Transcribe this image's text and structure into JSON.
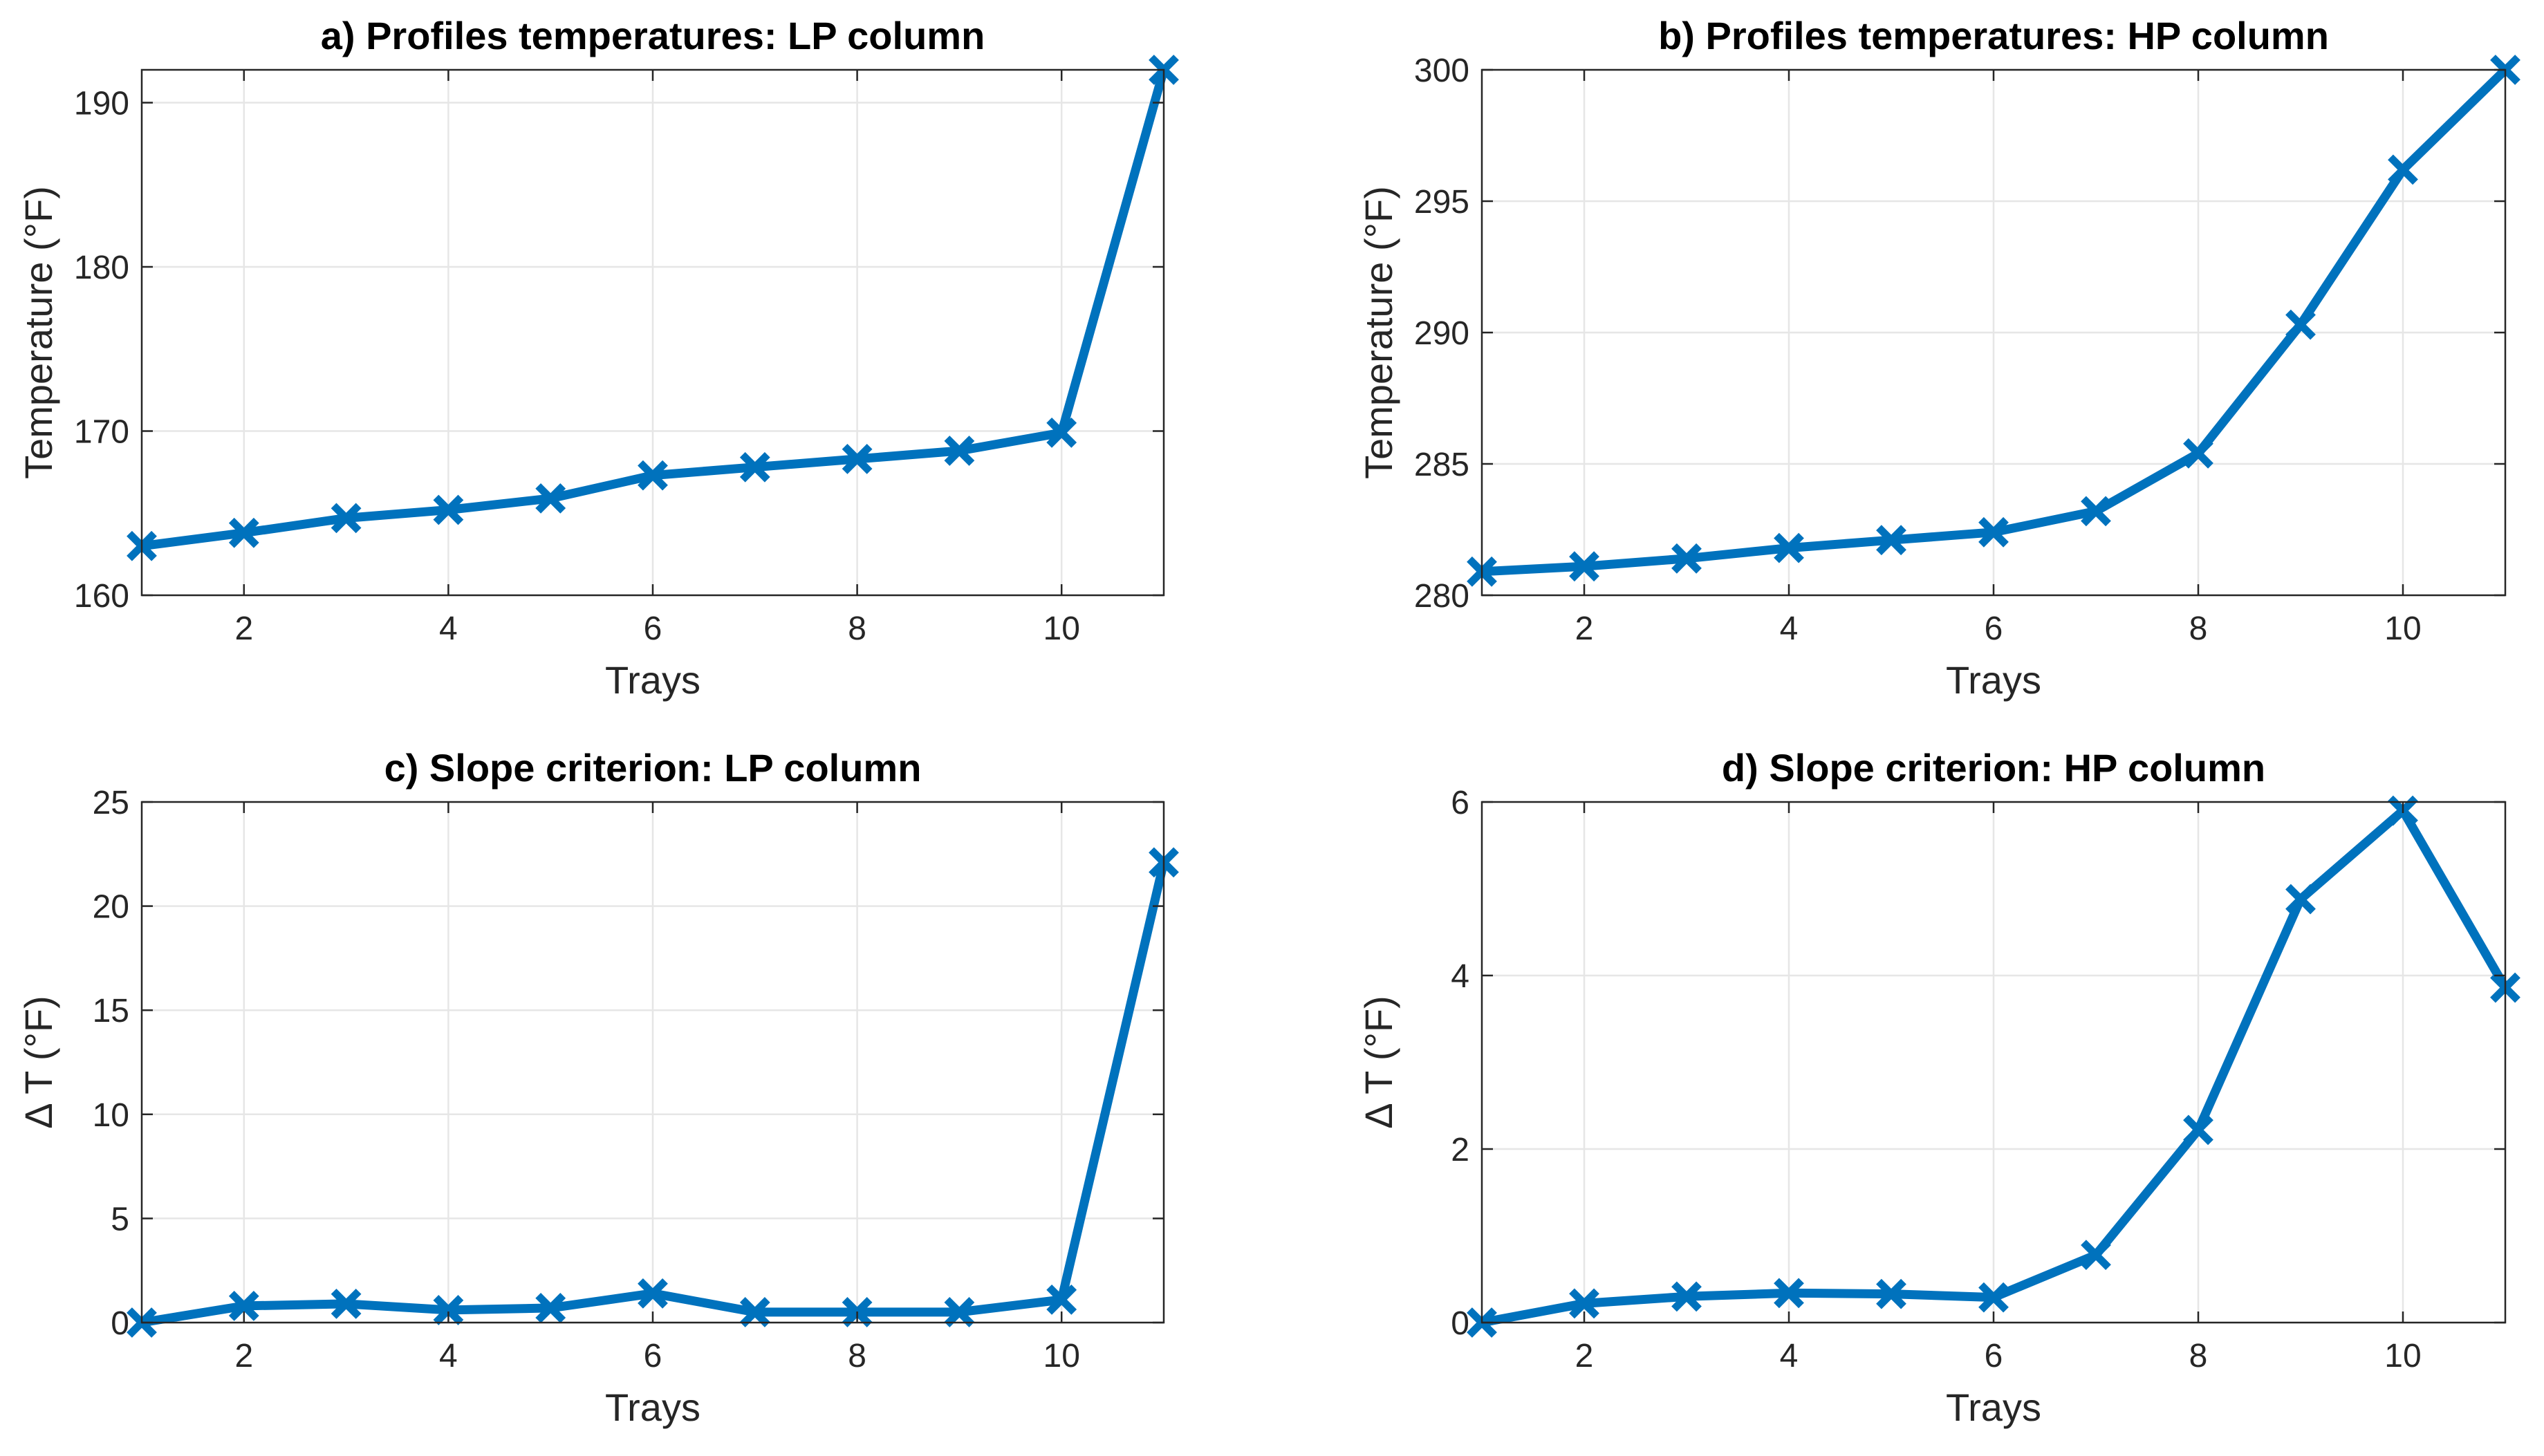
{
  "colors": {
    "series": "#0072BD",
    "grid": "#e6e6e6",
    "axis": "#262626",
    "background": "#ffffff"
  },
  "chart_data": [
    {
      "type": "line",
      "title": "a) Profiles temperatures: LP column",
      "xlabel": "Trays",
      "ylabel": "Temperature (°F)",
      "xlim": [
        1,
        11
      ],
      "ylim": [
        160,
        192
      ],
      "xticks": [
        2,
        4,
        6,
        8,
        10
      ],
      "yticks": [
        160,
        170,
        180,
        190
      ],
      "grid": true,
      "marker": "x",
      "series": [
        {
          "x": [
            1,
            2,
            3,
            4,
            5,
            6,
            7,
            8,
            9,
            10,
            11
          ],
          "values": [
            163.0,
            163.8,
            164.7,
            165.2,
            165.9,
            167.3,
            167.8,
            168.3,
            168.8,
            169.9,
            192.0
          ]
        }
      ]
    },
    {
      "type": "line",
      "title": "b) Profiles temperatures: HP column",
      "xlabel": "Trays",
      "ylabel": "Temperature (°F)",
      "xlim": [
        1,
        11
      ],
      "ylim": [
        280,
        300
      ],
      "xticks": [
        2,
        4,
        6,
        8,
        10
      ],
      "yticks": [
        280,
        285,
        290,
        295,
        300
      ],
      "grid": true,
      "marker": "x",
      "series": [
        {
          "x": [
            1,
            2,
            3,
            4,
            5,
            6,
            7,
            8,
            9,
            10,
            11
          ],
          "values": [
            280.9,
            281.1,
            281.4,
            281.8,
            282.1,
            282.4,
            283.2,
            285.4,
            290.3,
            296.2,
            300.0
          ]
        }
      ]
    },
    {
      "type": "line",
      "title": "c) Slope criterion: LP column",
      "xlabel": "Trays",
      "ylabel": "Δ T (°F)",
      "xlim": [
        1,
        11
      ],
      "ylim": [
        0,
        25
      ],
      "xticks": [
        2,
        4,
        6,
        8,
        10
      ],
      "yticks": [
        0,
        5,
        10,
        15,
        20,
        25
      ],
      "grid": true,
      "marker": "x",
      "series": [
        {
          "x": [
            1,
            2,
            3,
            4,
            5,
            6,
            7,
            8,
            9,
            10,
            11
          ],
          "values": [
            0,
            0.8,
            0.9,
            0.6,
            0.7,
            1.4,
            0.5,
            0.5,
            0.5,
            1.1,
            22.1
          ]
        }
      ]
    },
    {
      "type": "line",
      "title": "d) Slope criterion: HP column",
      "xlabel": "Trays",
      "ylabel": "Δ T (°F)",
      "xlim": [
        1,
        11
      ],
      "ylim": [
        0,
        6
      ],
      "xticks": [
        2,
        4,
        6,
        8,
        10
      ],
      "yticks": [
        0,
        2,
        4,
        6
      ],
      "grid": true,
      "marker": "x",
      "series": [
        {
          "x": [
            1,
            2,
            3,
            4,
            5,
            6,
            7,
            8,
            9,
            10,
            11
          ],
          "values": [
            0,
            0.22,
            0.3,
            0.34,
            0.33,
            0.29,
            0.78,
            2.22,
            4.88,
            5.9,
            3.86
          ]
        }
      ]
    }
  ]
}
